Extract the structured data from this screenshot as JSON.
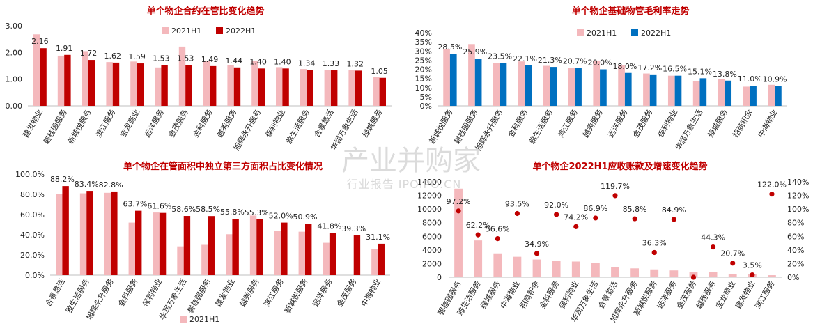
{
  "colors": {
    "h1_2021": "#f4b8bc",
    "h1_2022": "#c00000",
    "blue_2022": "#0070c0",
    "title": "#c00000",
    "dot": "#c00000"
  },
  "watermark": {
    "main": "产业并购家",
    "sub": "行业报告 IPOIPO.CN"
  },
  "chart_data": [
    {
      "type": "bar",
      "title": "单个物企合约在管比变化趋势",
      "categories": [
        "建发物业",
        "碧桂园服务",
        "新城悦服务",
        "滨江服务",
        "宝龙商业",
        "远洋服务",
        "金茂服务",
        "金科服务",
        "越秀服务",
        "旭辉永升服务",
        "保利物业",
        "雅生活服务",
        "合景悠活",
        "华润万象生活",
        "绿城服务"
      ],
      "series": [
        {
          "name": "2021H1",
          "values": [
            2.68,
            1.88,
            2.05,
            1.64,
            1.66,
            1.44,
            2.22,
            1.68,
            1.52,
            1.69,
            1.45,
            1.38,
            1.35,
            1.33,
            1.08
          ]
        },
        {
          "name": "2022H1",
          "values": [
            2.16,
            1.91,
            1.72,
            1.62,
            1.59,
            1.53,
            1.53,
            1.49,
            1.44,
            1.4,
            1.4,
            1.34,
            1.33,
            1.32,
            1.05
          ]
        }
      ],
      "labels": [
        "2.16",
        "1.91",
        "1.72",
        "1.62",
        "1.59",
        "1.53",
        "1.53",
        "1.49",
        "1.44",
        "1.40",
        "1.40",
        "1.34",
        "1.33",
        "1.32",
        "1.05"
      ],
      "yticks": [
        "3.00",
        "2.00",
        "1.00",
        "0.00"
      ],
      "ylim": [
        0,
        3
      ],
      "legend": "top"
    },
    {
      "type": "bar",
      "title": "单个物企基础物管毛利率走势",
      "categories": [
        "新城悦服务",
        "碧桂园服务",
        "旭辉永升服务",
        "金科服务",
        "雅生活服务",
        "滨江服务",
        "越秀服务",
        "远洋服务",
        "金茂服务",
        "保利物业",
        "华润万象生活",
        "绿城服务",
        "招商积余",
        "中海物业"
      ],
      "series": [
        {
          "name": "2021H1",
          "values": [
            31.0,
            33.8,
            23.5,
            24.3,
            21.9,
            20.7,
            24.8,
            22.2,
            17.7,
            16.5,
            13.7,
            14.5,
            10.5,
            11.5
          ]
        },
        {
          "name": "2022H1",
          "values": [
            28.5,
            25.9,
            23.5,
            22.1,
            21.3,
            20.7,
            20.0,
            18.0,
            17.2,
            16.5,
            15.1,
            13.8,
            11.0,
            10.9
          ]
        }
      ],
      "labels": [
        "28.5%",
        "25.9%",
        "23.5%",
        "22.1%",
        "21.3%",
        "20.7%",
        "20.0%",
        "18.0%",
        "17.2%",
        "16.5%",
        "15.1%",
        "13.8%",
        "11.0%",
        "10.9%"
      ],
      "yticks": [
        "40%",
        "35%",
        "30%",
        "25%",
        "20%",
        "15%",
        "10%",
        "5%",
        "0%"
      ],
      "ylim": [
        0,
        40
      ],
      "legend": "top"
    },
    {
      "type": "bar",
      "title": "单个物企在管面积中独立第三方面积占比变化情况",
      "categories": [
        "合景悠活",
        "雅生活服务",
        "旭辉永升服务",
        "金科服务",
        "保利物业",
        "华润万象生活",
        "碧桂园服务",
        "建发物业",
        "越秀服务",
        "滨江服务",
        "新城悦服务",
        "远洋服务",
        "金茂服务",
        "中海物业"
      ],
      "series": [
        {
          "name": "2021H1",
          "values": [
            80.0,
            81.0,
            81.5,
            52.0,
            62.0,
            28.5,
            30.0,
            40.5,
            59.0,
            44.0,
            43.0,
            32.0,
            0,
            26.0
          ]
        },
        {
          "name": "2022H1",
          "values": [
            88.2,
            83.4,
            82.8,
            63.7,
            61.6,
            58.6,
            58.5,
            55.8,
            55.3,
            52.0,
            50.9,
            41.8,
            39.3,
            31.1
          ]
        }
      ],
      "labels": [
        "88.2%",
        "83.4%",
        "82.8%",
        "63.7%",
        "61.6%",
        "58.6%",
        "58.5%",
        "55.8%",
        "55.3%",
        "52.0%",
        "50.9%",
        "41.8%",
        "39.3%",
        "31.1%"
      ],
      "yticks": [
        "100.0%",
        "80.0%",
        "60.0%",
        "40.0%",
        "20.0%",
        "0.0%"
      ],
      "ylim": [
        0,
        100
      ],
      "legend": "bottom",
      "legend_visible": [
        "2021H1"
      ]
    },
    {
      "type": "bar+scatter",
      "title": "单个物企2022H1应收账款及增速变化趋势",
      "categories": [
        "碧桂园服务",
        "雅生活服务",
        "绿城服务",
        "中海物业",
        "招商积余",
        "金科服务",
        "保利物业",
        "华润万象生活",
        "合景悠活",
        "旭辉永升服务",
        "新城悦服务",
        "远洋服务",
        "金茂服务",
        "越秀服务",
        "宝龙商业",
        "建发物业",
        "滨江服务"
      ],
      "bars": [
        13000,
        5400,
        3500,
        3000,
        2600,
        2450,
        2300,
        2100,
        1500,
        1300,
        1150,
        1000,
        800,
        750,
        500,
        450,
        300
      ],
      "growth": [
        97.2,
        62.2,
        56.6,
        93.5,
        34.9,
        92.0,
        74.2,
        86.9,
        119.7,
        85.8,
        36.3,
        84.9,
        0,
        44.3,
        20.7,
        3.5,
        122.0
      ],
      "growth_labels": [
        "97.2%",
        "62.2%",
        "56.6%",
        "93.5%",
        "34.9%",
        "92.0%",
        "74.2%",
        "86.9%",
        "119.7%",
        "85.8%",
        "36.3%",
        "84.9%",
        "",
        "44.3%",
        "20.7%",
        "3.5%",
        "122.0%"
      ],
      "yticks_left": [
        "14000",
        "12000",
        "10000",
        "8000",
        "6000",
        "4000",
        "2000",
        "0"
      ],
      "yticks_right": [
        "140%",
        "120%",
        "100%",
        "80%",
        "60%",
        "40%",
        "20%",
        "0%"
      ],
      "ylim_left": [
        0,
        14000
      ],
      "ylim_right": [
        0,
        140
      ]
    }
  ]
}
